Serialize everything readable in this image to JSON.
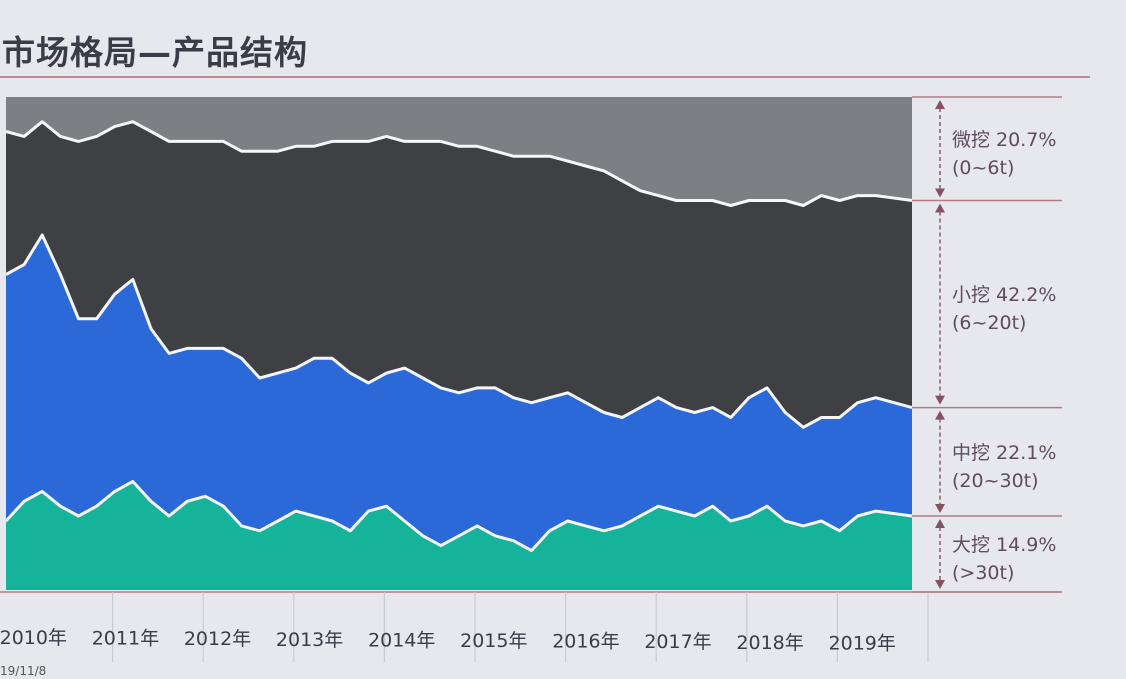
{
  "title": "市场格局—产品结构",
  "footer": {
    "date": "19/11/8"
  },
  "colors": {
    "micro": "#7d7f84",
    "small": "#3f4043",
    "medium": "#2b68d8",
    "large": "#15b49a",
    "line": "#f4f6fa",
    "label": "#5f4c5f",
    "bracket": "#8a4f63"
  },
  "chart_data": {
    "type": "area",
    "stacked": true,
    "normalized": true,
    "ylim": [
      0,
      100
    ],
    "xlim": [
      2010,
      2020
    ],
    "xlabel": "",
    "ylabel": "",
    "x_tick_labels": [
      "2010年",
      "2011年",
      "2012年",
      "2013年",
      "2014年",
      "2015年",
      "2016年",
      "2017年",
      "2018年",
      "2019年"
    ],
    "x": [
      2010.0,
      2010.2,
      2010.4,
      2010.6,
      2010.8,
      2011.0,
      2011.2,
      2011.4,
      2011.6,
      2011.8,
      2012.0,
      2012.2,
      2012.4,
      2012.6,
      2012.8,
      2013.0,
      2013.2,
      2013.4,
      2013.6,
      2013.8,
      2014.0,
      2014.2,
      2014.4,
      2014.6,
      2014.8,
      2015.0,
      2015.2,
      2015.4,
      2015.6,
      2015.8,
      2016.0,
      2016.2,
      2016.4,
      2016.6,
      2016.8,
      2017.0,
      2017.2,
      2017.4,
      2017.6,
      2017.8,
      2018.0,
      2018.2,
      2018.4,
      2018.6,
      2018.8,
      2019.0,
      2019.2,
      2019.4,
      2019.6,
      2019.8
    ],
    "series": [
      {
        "key": "large",
        "name": "大挖",
        "values": [
          14,
          18,
          20,
          17,
          15,
          17,
          20,
          22,
          18,
          15,
          18,
          19,
          17,
          13,
          12,
          14,
          16,
          15,
          14,
          12,
          16,
          17,
          14,
          11,
          9,
          11,
          13,
          11,
          10,
          8,
          12,
          14,
          13,
          12,
          13,
          15,
          17,
          16,
          15,
          17,
          14,
          15,
          17,
          14,
          13,
          14,
          12,
          15,
          16,
          15
        ]
      },
      {
        "key": "medium",
        "name": "中挖",
        "values": [
          50,
          48,
          52,
          47,
          40,
          38,
          40,
          41,
          35,
          33,
          31,
          30,
          32,
          34,
          31,
          30,
          29,
          32,
          33,
          32,
          26,
          27,
          31,
          32,
          32,
          29,
          28,
          30,
          29,
          30,
          27,
          26,
          25,
          24,
          22,
          22,
          22,
          21,
          21,
          20,
          21,
          24,
          24,
          22,
          20,
          21,
          23,
          23,
          23,
          22
        ]
      },
      {
        "key": "small",
        "name": "小挖",
        "values": [
          29,
          26,
          23,
          28,
          36,
          37,
          34,
          32,
          40,
          43,
          42,
          42,
          42,
          42,
          46,
          45,
          45,
          43,
          44,
          47,
          49,
          48,
          46,
          48,
          50,
          50,
          49,
          48,
          49,
          50,
          49,
          47,
          48,
          49,
          48,
          44,
          41,
          42,
          43,
          42,
          43,
          40,
          38,
          43,
          45,
          45,
          44,
          42,
          41,
          42
        ]
      },
      {
        "key": "micro",
        "name": "微挖",
        "values": [
          7,
          8,
          5,
          8,
          9,
          8,
          6,
          5,
          7,
          9,
          9,
          9,
          9,
          11,
          11,
          11,
          10,
          10,
          9,
          9,
          9,
          8,
          9,
          9,
          9,
          10,
          10,
          11,
          12,
          12,
          12,
          13,
          14,
          15,
          17,
          19,
          20,
          21,
          21,
          21,
          22,
          21,
          21,
          21,
          22,
          20,
          21,
          20,
          20,
          21
        ]
      }
    ],
    "legend": [
      {
        "key": "micro",
        "share": "微挖 20.7%",
        "range": "(0~6t)"
      },
      {
        "key": "small",
        "share": "小挖 42.2%",
        "range": "(6~20t)"
      },
      {
        "key": "medium",
        "share": "中挖 22.1%",
        "range": "(20~30t)"
      },
      {
        "key": "large",
        "share": "大挖 14.9%",
        "range": "(>30t)"
      }
    ],
    "legend_shares": [
      20.7,
      42.2,
      22.1,
      14.9
    ],
    "legend_placement": "right",
    "grid": false
  }
}
